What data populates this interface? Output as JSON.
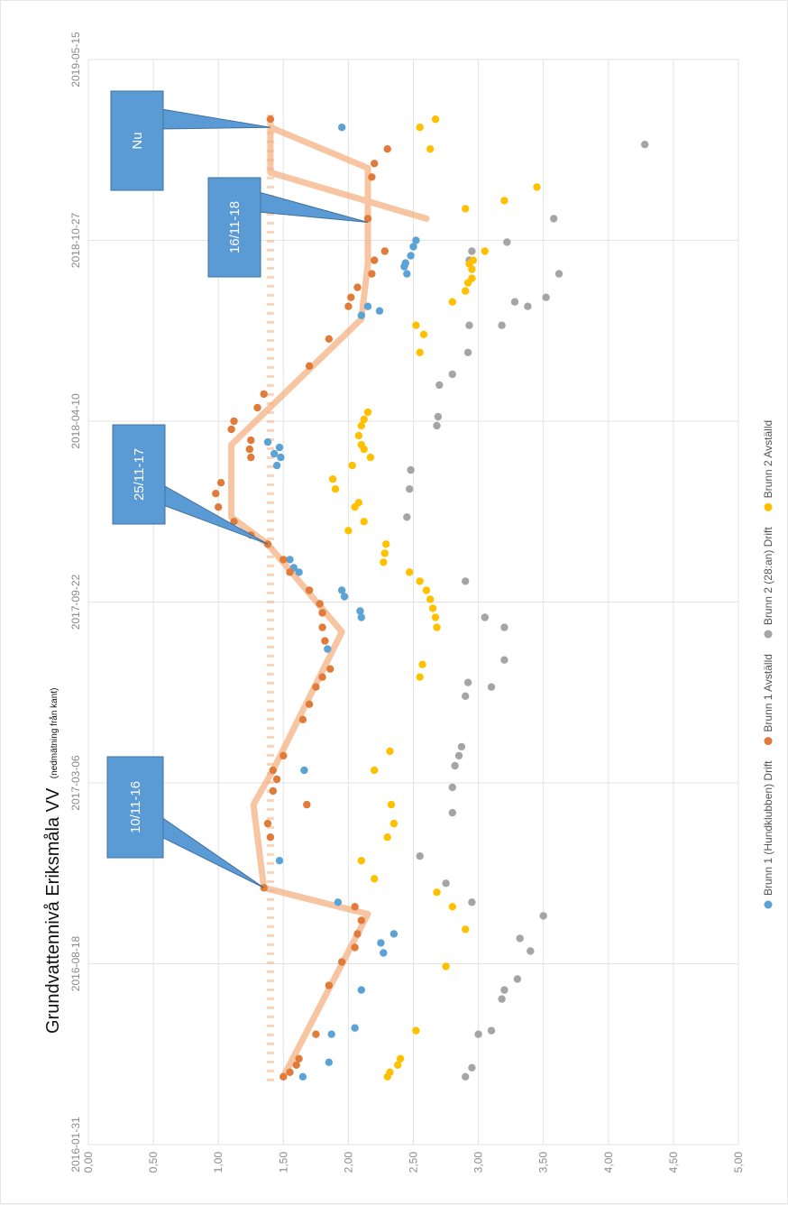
{
  "chart_data": {
    "type": "scatter",
    "orientation": "rotated 90° counter-clockwise",
    "title": "Grundvattennivå Eriksmåla VV",
    "subtitle": "(nedmätning från kant)",
    "x_axis": {
      "kind": "date",
      "range": [
        "2016-01-31",
        "2019-05-15"
      ],
      "tick_labels": [
        "2016-01-31",
        "2016-08-18",
        "2017-03-06",
        "2017-09-22",
        "2018-04-10",
        "2018-10-27",
        "2019-05-15"
      ]
    },
    "y_axis": {
      "range": [
        0,
        5
      ],
      "reversed": false,
      "tick_labels": [
        "0,00",
        "0,50",
        "1,00",
        "1,50",
        "2,00",
        "2,50",
        "3,00",
        "3,50",
        "4,00",
        "4,50",
        "5,00"
      ]
    },
    "grid": true,
    "legend_position": "bottom",
    "callouts": [
      {
        "label": "10/11-16",
        "x": "2016-11-10",
        "y": 1.35
      },
      {
        "label": "25/11-17",
        "x": "2017-11-25",
        "y": 1.38
      },
      {
        "label": "16/11-18",
        "x": "2018-11-16",
        "y": 2.15
      },
      {
        "label": "Nu",
        "x": "2019-03-01",
        "y": 1.4
      }
    ],
    "reference_line": {
      "y": 1.4,
      "style": "dashed",
      "color": "#f4b183"
    },
    "trend_line": {
      "color": "#f4b183",
      "points": [
        {
          "x": "2016-04-15",
          "y": 1.5
        },
        {
          "x": "2016-10-12",
          "y": 2.15
        },
        {
          "x": "2016-11-10",
          "y": 1.35
        },
        {
          "x": "2017-02-10",
          "y": 1.27
        },
        {
          "x": "2017-03-20",
          "y": 1.42
        },
        {
          "x": "2017-08-20",
          "y": 1.95
        },
        {
          "x": "2017-11-25",
          "y": 1.38
        },
        {
          "x": "2017-12-25",
          "y": 1.1
        },
        {
          "x": "2018-03-15",
          "y": 1.1
        },
        {
          "x": "2018-08-01",
          "y": 2.1
        },
        {
          "x": "2018-10-01",
          "y": 2.15
        },
        {
          "x": "2018-11-16",
          "y": 2.15
        },
        {
          "x": "2019-01-15",
          "y": 2.15
        },
        {
          "x": "2019-03-01",
          "y": 1.4
        },
        {
          "x": "2019-01-10",
          "y": 1.4
        },
        {
          "x": "2018-11-20",
          "y": 2.6
        }
      ]
    },
    "series": [
      {
        "name": "Brunn 1 (Hundklubben) Drift",
        "color": "#5ba3d6",
        "points": [
          {
            "x": "2016-04-15",
            "y": 1.65
          },
          {
            "x": "2016-05-01",
            "y": 1.85
          },
          {
            "x": "2016-06-01",
            "y": 1.87
          },
          {
            "x": "2016-06-08",
            "y": 2.05
          },
          {
            "x": "2016-07-20",
            "y": 2.1
          },
          {
            "x": "2016-08-30",
            "y": 2.27
          },
          {
            "x": "2016-09-10",
            "y": 2.25
          },
          {
            "x": "2016-09-20",
            "y": 2.35
          },
          {
            "x": "2016-10-25",
            "y": 1.92
          },
          {
            "x": "2016-12-10",
            "y": 1.47
          },
          {
            "x": "2017-03-20",
            "y": 1.66
          },
          {
            "x": "2017-08-01",
            "y": 1.84
          },
          {
            "x": "2017-09-05",
            "y": 2.1
          },
          {
            "x": "2017-09-12",
            "y": 2.09
          },
          {
            "x": "2017-09-28",
            "y": 1.97
          },
          {
            "x": "2017-10-05",
            "y": 1.95
          },
          {
            "x": "2017-10-25",
            "y": 1.62
          },
          {
            "x": "2017-10-30",
            "y": 1.58
          },
          {
            "x": "2017-11-08",
            "y": 1.55
          },
          {
            "x": "2018-02-20",
            "y": 1.45
          },
          {
            "x": "2018-03-01",
            "y": 1.48
          },
          {
            "x": "2018-03-05",
            "y": 1.43
          },
          {
            "x": "2018-03-12",
            "y": 1.47
          },
          {
            "x": "2018-03-18",
            "y": 1.38
          },
          {
            "x": "2018-08-05",
            "y": 2.1
          },
          {
            "x": "2018-08-10",
            "y": 2.24
          },
          {
            "x": "2018-08-15",
            "y": 2.15
          },
          {
            "x": "2018-09-20",
            "y": 2.45
          },
          {
            "x": "2018-09-28",
            "y": 2.43
          },
          {
            "x": "2018-10-02",
            "y": 2.44
          },
          {
            "x": "2018-10-10",
            "y": 2.48
          },
          {
            "x": "2018-10-20",
            "y": 2.5
          },
          {
            "x": "2018-10-27",
            "y": 2.52
          },
          {
            "x": "2019-03-01",
            "y": 1.95
          }
        ]
      },
      {
        "name": "Brunn 1 Avställd",
        "color": "#e07b39",
        "points": [
          {
            "x": "2016-04-15",
            "y": 1.5
          },
          {
            "x": "2016-04-20",
            "y": 1.55
          },
          {
            "x": "2016-04-28",
            "y": 1.6
          },
          {
            "x": "2016-05-05",
            "y": 1.62
          },
          {
            "x": "2016-06-01",
            "y": 1.75
          },
          {
            "x": "2016-07-25",
            "y": 1.85
          },
          {
            "x": "2016-08-20",
            "y": 1.95
          },
          {
            "x": "2016-09-05",
            "y": 2.05
          },
          {
            "x": "2016-09-20",
            "y": 2.07
          },
          {
            "x": "2016-10-05",
            "y": 2.1
          },
          {
            "x": "2016-10-20",
            "y": 2.05
          },
          {
            "x": "2016-11-10",
            "y": 1.35
          },
          {
            "x": "2017-01-05",
            "y": 1.4
          },
          {
            "x": "2017-01-20",
            "y": 1.38
          },
          {
            "x": "2017-02-10",
            "y": 1.68
          },
          {
            "x": "2017-02-25",
            "y": 1.42
          },
          {
            "x": "2017-03-10",
            "y": 1.45
          },
          {
            "x": "2017-03-20",
            "y": 1.42
          },
          {
            "x": "2017-04-05",
            "y": 1.5
          },
          {
            "x": "2017-05-15",
            "y": 1.65
          },
          {
            "x": "2017-06-01",
            "y": 1.7
          },
          {
            "x": "2017-06-20",
            "y": 1.75
          },
          {
            "x": "2017-07-01",
            "y": 1.8
          },
          {
            "x": "2017-07-10",
            "y": 1.86
          },
          {
            "x": "2017-08-10",
            "y": 1.82
          },
          {
            "x": "2017-08-25",
            "y": 1.8
          },
          {
            "x": "2017-09-10",
            "y": 1.8
          },
          {
            "x": "2017-09-20",
            "y": 1.78
          },
          {
            "x": "2017-10-05",
            "y": 1.7
          },
          {
            "x": "2017-10-25",
            "y": 1.55
          },
          {
            "x": "2017-11-08",
            "y": 1.5
          },
          {
            "x": "2017-11-25",
            "y": 1.38
          },
          {
            "x": "2017-12-05",
            "y": 1.25
          },
          {
            "x": "2017-12-20",
            "y": 1.12
          },
          {
            "x": "2018-01-05",
            "y": 1.0
          },
          {
            "x": "2018-01-20",
            "y": 0.98
          },
          {
            "x": "2018-02-01",
            "y": 1.02
          },
          {
            "x": "2018-03-01",
            "y": 1.25
          },
          {
            "x": "2018-03-10",
            "y": 1.24
          },
          {
            "x": "2018-03-20",
            "y": 1.25
          },
          {
            "x": "2018-04-01",
            "y": 1.1
          },
          {
            "x": "2018-04-10",
            "y": 1.12
          },
          {
            "x": "2018-04-25",
            "y": 1.3
          },
          {
            "x": "2018-05-10",
            "y": 1.35
          },
          {
            "x": "2018-06-10",
            "y": 1.7
          },
          {
            "x": "2018-07-10",
            "y": 1.85
          },
          {
            "x": "2018-08-15",
            "y": 2.0
          },
          {
            "x": "2018-08-25",
            "y": 2.02
          },
          {
            "x": "2018-09-05",
            "y": 2.07
          },
          {
            "x": "2018-09-20",
            "y": 2.18
          },
          {
            "x": "2018-10-05",
            "y": 2.2
          },
          {
            "x": "2018-10-15",
            "y": 2.28
          },
          {
            "x": "2018-11-20",
            "y": 2.15
          },
          {
            "x": "2019-01-05",
            "y": 2.18
          },
          {
            "x": "2019-01-20",
            "y": 2.2
          },
          {
            "x": "2019-02-05",
            "y": 2.3
          },
          {
            "x": "2019-03-10",
            "y": 1.4
          }
        ]
      },
      {
        "name": "Brunn 2 (28:an) Drift",
        "color": "#a5a5a5",
        "points": [
          {
            "x": "2016-04-15",
            "y": 2.9
          },
          {
            "x": "2016-04-25",
            "y": 2.95
          },
          {
            "x": "2016-06-01",
            "y": 3.0
          },
          {
            "x": "2016-06-05",
            "y": 3.1
          },
          {
            "x": "2016-07-10",
            "y": 3.18
          },
          {
            "x": "2016-07-20",
            "y": 3.2
          },
          {
            "x": "2016-08-01",
            "y": 3.3
          },
          {
            "x": "2016-09-01",
            "y": 3.4
          },
          {
            "x": "2016-09-15",
            "y": 3.32
          },
          {
            "x": "2016-10-10",
            "y": 3.5
          },
          {
            "x": "2016-10-25",
            "y": 2.95
          },
          {
            "x": "2016-11-15",
            "y": 2.75
          },
          {
            "x": "2016-12-15",
            "y": 2.55
          },
          {
            "x": "2017-02-01",
            "y": 2.8
          },
          {
            "x": "2017-03-01",
            "y": 2.8
          },
          {
            "x": "2017-03-25",
            "y": 2.82
          },
          {
            "x": "2017-04-05",
            "y": 2.85
          },
          {
            "x": "2017-04-15",
            "y": 2.87
          },
          {
            "x": "2017-06-10",
            "y": 2.9
          },
          {
            "x": "2017-06-25",
            "y": 2.92
          },
          {
            "x": "2017-06-20",
            "y": 3.1
          },
          {
            "x": "2017-07-20",
            "y": 3.2
          },
          {
            "x": "2017-08-25",
            "y": 3.2
          },
          {
            "x": "2017-09-05",
            "y": 3.05
          },
          {
            "x": "2017-10-15",
            "y": 2.9
          },
          {
            "x": "2017-12-25",
            "y": 2.45
          },
          {
            "x": "2018-01-25",
            "y": 2.47
          },
          {
            "x": "2018-02-15",
            "y": 2.48
          },
          {
            "x": "2018-04-05",
            "y": 2.68
          },
          {
            "x": "2018-04-15",
            "y": 2.69
          },
          {
            "x": "2018-05-20",
            "y": 2.7
          },
          {
            "x": "2018-06-01",
            "y": 2.8
          },
          {
            "x": "2018-06-25",
            "y": 2.92
          },
          {
            "x": "2018-07-25",
            "y": 3.18
          },
          {
            "x": "2018-08-20",
            "y": 3.28
          },
          {
            "x": "2018-08-15",
            "y": 3.38
          },
          {
            "x": "2018-08-25",
            "y": 3.52
          },
          {
            "x": "2018-07-25",
            "y": 2.93
          },
          {
            "x": "2018-09-20",
            "y": 3.62
          },
          {
            "x": "2018-10-05",
            "y": 2.93
          },
          {
            "x": "2018-10-15",
            "y": 2.95
          },
          {
            "x": "2018-10-25",
            "y": 3.22
          },
          {
            "x": "2018-11-20",
            "y": 3.58
          },
          {
            "x": "2019-02-10",
            "y": 4.28
          }
        ]
      },
      {
        "name": "Brunn 2 Avställd",
        "color": "#ffc000",
        "points": [
          {
            "x": "2016-04-15",
            "y": 2.3
          },
          {
            "x": "2016-04-20",
            "y": 2.32
          },
          {
            "x": "2016-04-28",
            "y": 2.38
          },
          {
            "x": "2016-05-05",
            "y": 2.4
          },
          {
            "x": "2016-06-05",
            "y": 2.52
          },
          {
            "x": "2016-08-15",
            "y": 2.75
          },
          {
            "x": "2016-09-25",
            "y": 2.9
          },
          {
            "x": "2016-10-20",
            "y": 2.8
          },
          {
            "x": "2016-11-05",
            "y": 2.68
          },
          {
            "x": "2016-11-20",
            "y": 2.2
          },
          {
            "x": "2016-12-10",
            "y": 2.1
          },
          {
            "x": "2017-01-05",
            "y": 2.3
          },
          {
            "x": "2017-01-20",
            "y": 2.35
          },
          {
            "x": "2017-02-10",
            "y": 2.33
          },
          {
            "x": "2017-03-20",
            "y": 2.2
          },
          {
            "x": "2017-04-10",
            "y": 2.32
          },
          {
            "x": "2017-07-01",
            "y": 2.55
          },
          {
            "x": "2017-07-15",
            "y": 2.57
          },
          {
            "x": "2017-08-25",
            "y": 2.68
          },
          {
            "x": "2017-09-05",
            "y": 2.67
          },
          {
            "x": "2017-09-15",
            "y": 2.65
          },
          {
            "x": "2017-09-25",
            "y": 2.63
          },
          {
            "x": "2017-10-05",
            "y": 2.6
          },
          {
            "x": "2017-10-15",
            "y": 2.55
          },
          {
            "x": "2017-10-25",
            "y": 2.47
          },
          {
            "x": "2017-11-05",
            "y": 2.27
          },
          {
            "x": "2017-11-15",
            "y": 2.28
          },
          {
            "x": "2017-11-25",
            "y": 2.29
          },
          {
            "x": "2017-12-10",
            "y": 2.0
          },
          {
            "x": "2017-12-20",
            "y": 2.12
          },
          {
            "x": "2018-01-05",
            "y": 2.05
          },
          {
            "x": "2018-01-10",
            "y": 2.08
          },
          {
            "x": "2018-01-25",
            "y": 1.9
          },
          {
            "x": "2018-02-05",
            "y": 1.88
          },
          {
            "x": "2018-02-20",
            "y": 2.03
          },
          {
            "x": "2018-03-01",
            "y": 2.17
          },
          {
            "x": "2018-03-10",
            "y": 2.12
          },
          {
            "x": "2018-03-15",
            "y": 2.1
          },
          {
            "x": "2018-03-25",
            "y": 2.08
          },
          {
            "x": "2018-04-05",
            "y": 2.1
          },
          {
            "x": "2018-04-12",
            "y": 2.12
          },
          {
            "x": "2018-04-20",
            "y": 2.15
          },
          {
            "x": "2018-06-25",
            "y": 2.55
          },
          {
            "x": "2018-07-15",
            "y": 2.58
          },
          {
            "x": "2018-07-25",
            "y": 2.52
          },
          {
            "x": "2018-08-20",
            "y": 2.8
          },
          {
            "x": "2018-09-01",
            "y": 2.9
          },
          {
            "x": "2018-09-10",
            "y": 2.92
          },
          {
            "x": "2018-09-15",
            "y": 2.95
          },
          {
            "x": "2018-09-25",
            "y": 2.95
          },
          {
            "x": "2018-10-01",
            "y": 2.93
          },
          {
            "x": "2018-10-05",
            "y": 2.96
          },
          {
            "x": "2018-10-15",
            "y": 3.05
          },
          {
            "x": "2018-12-01",
            "y": 2.9
          },
          {
            "x": "2018-12-10",
            "y": 3.2
          },
          {
            "x": "2018-12-25",
            "y": 3.45
          },
          {
            "x": "2019-02-05",
            "y": 2.63
          },
          {
            "x": "2019-03-01",
            "y": 2.55
          },
          {
            "x": "2019-03-10",
            "y": 2.67
          }
        ]
      }
    ]
  }
}
